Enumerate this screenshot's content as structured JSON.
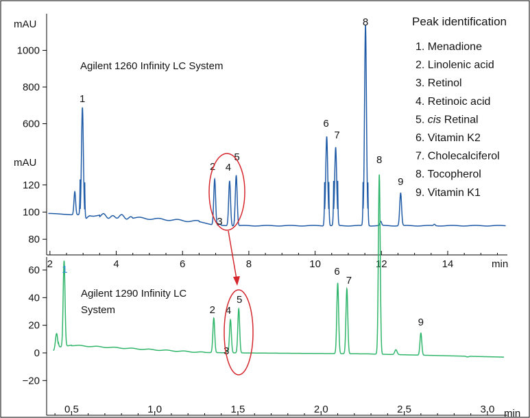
{
  "legend": {
    "title": "Peak identification",
    "items": [
      {
        "number": "1.",
        "name": "Menadione"
      },
      {
        "number": "2.",
        "name": "Linolenic acid"
      },
      {
        "number": "3.",
        "name": "Retinol"
      },
      {
        "number": "4.",
        "name": "Retinoic acid"
      },
      {
        "number": "5.",
        "name": "cis Retinal",
        "italic_prefix": "cis"
      },
      {
        "number": "6.",
        "name": "Vitamin K2"
      },
      {
        "number": "7.",
        "name": "Cholecalciferol"
      },
      {
        "number": "8.",
        "name": "Tocopherol"
      },
      {
        "number": "9.",
        "name": "Vitamin K1"
      }
    ]
  },
  "chart_data": [
    {
      "type": "line",
      "system_label": "Agilent 1260 Infinity LC System",
      "color": "#1f5aa6",
      "xlabel": "min",
      "xlim": [
        1.9,
        15.8
      ],
      "x_ticks": [
        2,
        4,
        6,
        8,
        10,
        12,
        14
      ],
      "axis_break": {
        "lower_range": [
          70,
          130
        ],
        "upper_range": [
          400,
          1200
        ],
        "lower_ticks": [
          80,
          100,
          120
        ],
        "upper_ticks": [
          600,
          800,
          1000
        ]
      },
      "ylabel_lower": "mAU",
      "ylabel_upper": "mAU",
      "baseline": 90,
      "peaks": [
        {
          "label": "1",
          "x": 2.98,
          "y": 680
        },
        {
          "label": "2",
          "x": 6.97,
          "y": 124
        },
        {
          "label": "3",
          "x": 7.12,
          "y": 91
        },
        {
          "label": "4",
          "x": 7.42,
          "y": 123
        },
        {
          "label": "5",
          "x": 7.62,
          "y": 127
        },
        {
          "label": "6",
          "x": 10.35,
          "y": 530
        },
        {
          "label": "7",
          "x": 10.62,
          "y": 470
        },
        {
          "label": "8",
          "x": 11.52,
          "y": 1140
        },
        {
          "label": "9",
          "x": 12.58,
          "y": 114
        }
      ],
      "minor_peaks": [
        {
          "x": 2.75,
          "y": 107
        },
        {
          "x": 11.98,
          "y": 93
        },
        {
          "x": 13.6,
          "y": 91
        }
      ]
    },
    {
      "type": "line",
      "system_label": "Agilent 1290 Infinity LC System",
      "color": "#2fb56a",
      "xlabel": "min",
      "xlim": [
        0.35,
        3.12
      ],
      "x_ticks": [
        0.5,
        1.0,
        1.5,
        2.0,
        2.5,
        3.0
      ],
      "ylim": [
        -30,
        70
      ],
      "y_ticks": [
        -20,
        0,
        20,
        40,
        60
      ],
      "baseline": 0,
      "peaks": [
        {
          "label": "1",
          "x": 0.455,
          "y": 62
        },
        {
          "label": "2",
          "x": 1.355,
          "y": 25
        },
        {
          "label": "3",
          "x": 1.435,
          "y": 1
        },
        {
          "label": "4",
          "x": 1.455,
          "y": 24
        },
        {
          "label": "5",
          "x": 1.505,
          "y": 32
        },
        {
          "label": "6",
          "x": 2.1,
          "y": 51
        },
        {
          "label": "7",
          "x": 2.155,
          "y": 47
        },
        {
          "label": "8",
          "x": 2.35,
          "y": 130
        },
        {
          "label": "9",
          "x": 2.6,
          "y": 16
        }
      ],
      "minor_peaks": [
        {
          "x": 0.41,
          "y": 11
        },
        {
          "x": 2.45,
          "y": 2
        },
        {
          "x": 2.88,
          "y": -2
        }
      ]
    }
  ]
}
